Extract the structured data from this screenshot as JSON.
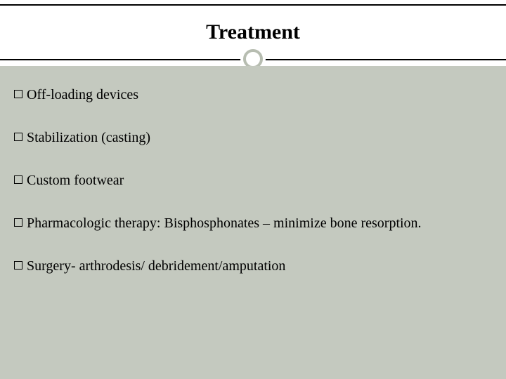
{
  "title": "Treatment",
  "bullets": [
    "Off-loading devices",
    "Stabilization (casting)",
    "Custom footwear",
    "Pharmacologic therapy: Bisphosphonates – minimize bone resorption.",
    "Surgery- arthrodesis/ debridement/amputation"
  ],
  "colors": {
    "body_bg": "#c4c9bf",
    "ring": "#b7bdb1",
    "text": "#000000",
    "header_bg": "#ffffff"
  },
  "typography": {
    "title_fontsize": 30,
    "body_fontsize": 20,
    "font_family": "Georgia"
  }
}
